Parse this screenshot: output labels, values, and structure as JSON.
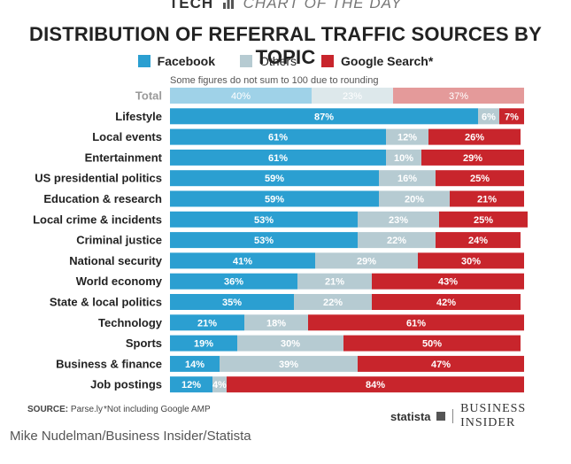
{
  "header": {
    "brand_bold": "TECH",
    "brand_rest": "CHART OF THE DAY"
  },
  "chart_data": {
    "type": "bar",
    "stacked": true,
    "orientation": "horizontal",
    "title": "DISTRIBUTION OF REFERRAL TRAFFIC SOURCES BY TOPIC",
    "note": "Some figures do not sum to 100 due to rounding",
    "categories": [
      "Total",
      "Lifestyle",
      "Local events",
      "Entertainment",
      "US presidential politics",
      "Education & research",
      "Local crime & incidents",
      "Criminal justice",
      "National security",
      "World economy",
      "State & local politics",
      "Technology",
      "Sports",
      "Business & finance",
      "Job postings"
    ],
    "series": [
      {
        "name": "Facebook",
        "color": "#2b9fd1",
        "total_color": "#9fd2e8",
        "values": [
          40,
          87,
          61,
          61,
          59,
          59,
          53,
          53,
          41,
          36,
          35,
          21,
          19,
          14,
          12
        ]
      },
      {
        "name": "Others",
        "color": "#b6cbd2",
        "total_color": "#dde8eb",
        "values": [
          23,
          6,
          12,
          10,
          16,
          20,
          23,
          22,
          29,
          21,
          22,
          18,
          30,
          39,
          4
        ]
      },
      {
        "name": "Google Search*",
        "color": "#c8252c",
        "total_color": "#e49a9a",
        "values": [
          37,
          7,
          26,
          29,
          25,
          21,
          25,
          24,
          30,
          43,
          42,
          61,
          50,
          47,
          84
        ]
      }
    ],
    "xlim": [
      0,
      100
    ],
    "legend_position": "top",
    "grid": false
  },
  "footer": {
    "source_label": "SOURCE:",
    "source_value": "Parse.ly",
    "footnote": "*Not including Google AMP",
    "statista": "statista",
    "business_insider": "BUSINESS INSIDER"
  },
  "credit": "Mike Nudelman/Business Insider/Statista"
}
